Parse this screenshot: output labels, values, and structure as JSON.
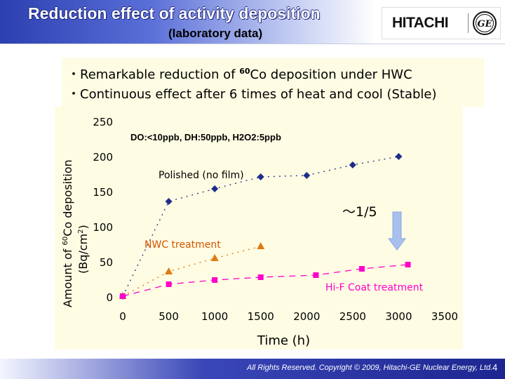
{
  "header": {
    "title": "Reduction effect of activity deposition",
    "subtitle": "(laboratory data)"
  },
  "logo": {
    "company": "HITACHI",
    "ge_mark": "GE"
  },
  "bullets": [
    "・Remarkable reduction of 60Co deposition under HWC",
    "・Continuous effect after 6 times of heat and cool (Stable)"
  ],
  "chart_data": {
    "type": "scatter",
    "title": "",
    "xlabel": "Time (h)",
    "ylabel": "Amount of 60Co deposition (Bq/cm2)",
    "xlim": [
      0,
      3500
    ],
    "ylim": [
      0,
      250
    ],
    "xticks": [
      0,
      500,
      1000,
      1500,
      2000,
      2500,
      3000,
      3500
    ],
    "yticks": [
      0,
      50,
      100,
      150,
      200,
      250
    ],
    "grid": false,
    "condition_label": "DO:<10ppb, DH:50ppb, H2O2:5ppb",
    "reduction_label": "～1/5",
    "series": [
      {
        "name": "Polished (no film)",
        "marker": "diamond",
        "color": "#1f2d8a",
        "x": [
          0,
          500,
          1000,
          1500,
          2000,
          2500,
          3000
        ],
        "y": [
          2,
          137,
          155,
          172,
          174,
          189,
          201
        ]
      },
      {
        "name": "NWC treatment",
        "marker": "triangle",
        "color": "#e07a12",
        "x": [
          0,
          500,
          1000,
          1500
        ],
        "y": [
          2,
          37,
          56,
          73
        ]
      },
      {
        "name": "Hi-F Coat treatment",
        "marker": "square",
        "color": "#ff00cc",
        "x": [
          0,
          500,
          1000,
          1500,
          2100,
          2600,
          3100
        ],
        "y": [
          2,
          19,
          25,
          29,
          32,
          41,
          47
        ]
      }
    ]
  },
  "footer": {
    "copyright": "All Rights Reserved. Copyright © 2009, Hitachi-GE Nuclear Energy, Ltd.",
    "page": "4"
  }
}
